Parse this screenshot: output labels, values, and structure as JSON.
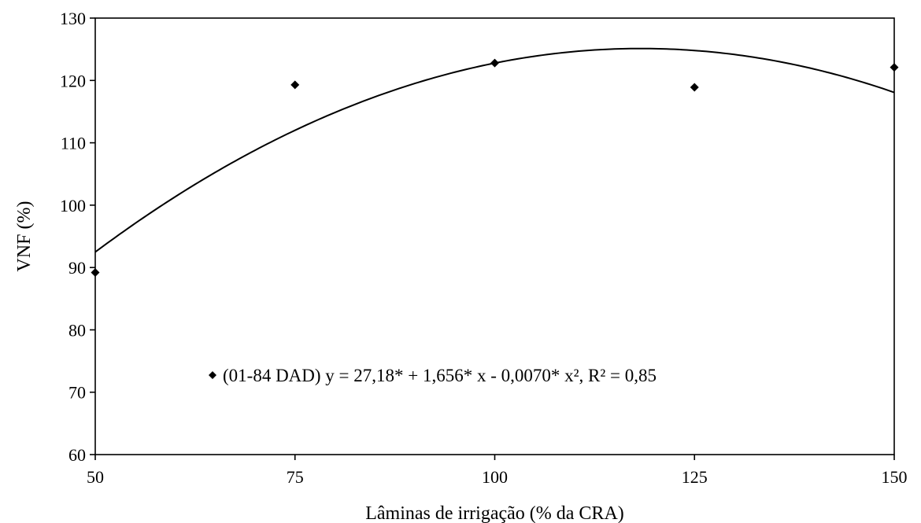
{
  "chart_data": {
    "type": "scatter",
    "xlabel": "Lâminas de irrigação (% da CRA)",
    "ylabel": "VNF (%)",
    "xlim": [
      50,
      150
    ],
    "ylim": [
      60,
      130
    ],
    "x_ticks": [
      50,
      75,
      100,
      125,
      150
    ],
    "y_ticks": [
      60,
      70,
      80,
      90,
      100,
      110,
      120,
      130
    ],
    "grid": false,
    "series": [
      {
        "name": "(01-84 DAD)",
        "x": [
          50,
          75,
          100,
          125,
          150
        ],
        "y": [
          89.2,
          119.3,
          122.8,
          118.9,
          122.1
        ],
        "marker": "diamond",
        "color": "#000000"
      }
    ],
    "trendline": {
      "type": "polynomial",
      "coefficients": {
        "a": 27.18,
        "b": 1.656,
        "c": -0.007
      },
      "x_range": [
        50,
        150
      ],
      "color": "#000000"
    },
    "legend": {
      "label": "(01-84 DAD) y =  27,18* + 1,656*  x - 0,0070* x², R² = 0,85",
      "placement": "lower-center"
    }
  }
}
